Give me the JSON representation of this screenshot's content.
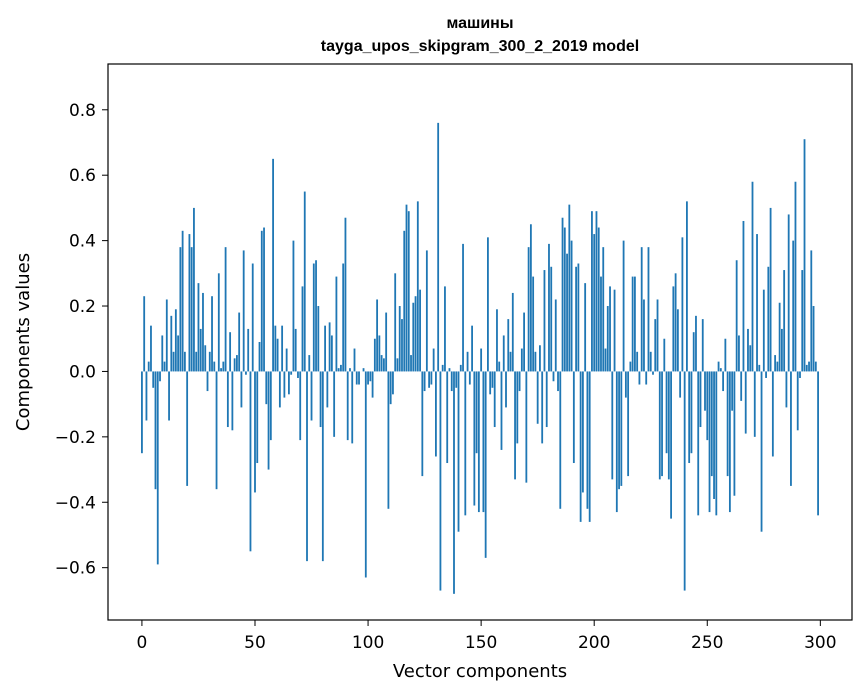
{
  "title_line1": "машины",
  "title_line2": "tayga_upos_skipgram_300_2_2019 model",
  "chart_data": {
    "type": "bar",
    "title": "машины tayga_upos_skipgram_300_2_2019 model",
    "xlabel": "Vector components",
    "ylabel": "Components values",
    "xlim": [
      -15,
      314
    ],
    "ylim": [
      -0.76,
      0.94
    ],
    "xticks": [
      0,
      50,
      100,
      150,
      200,
      250,
      300
    ],
    "xtick_labels": [
      "0",
      "50",
      "100",
      "150",
      "200",
      "250",
      "300"
    ],
    "yticks": [
      -0.6,
      -0.4,
      -0.2,
      0.0,
      0.2,
      0.4,
      0.6,
      0.8
    ],
    "ytick_labels": [
      "−0.6",
      "−0.4",
      "−0.2",
      "0.0",
      "0.2",
      "0.4",
      "0.6",
      "0.8"
    ],
    "grid": false,
    "bar_color": "#1f77b4",
    "x": [
      0,
      1,
      2,
      3,
      4,
      5,
      6,
      7,
      8,
      9,
      10,
      11,
      12,
      13,
      14,
      15,
      16,
      17,
      18,
      19,
      20,
      21,
      22,
      23,
      24,
      25,
      26,
      27,
      28,
      29,
      30,
      31,
      32,
      33,
      34,
      35,
      36,
      37,
      38,
      39,
      40,
      41,
      42,
      43,
      44,
      45,
      46,
      47,
      48,
      49,
      50,
      51,
      52,
      53,
      54,
      55,
      56,
      57,
      58,
      59,
      60,
      61,
      62,
      63,
      64,
      65,
      66,
      67,
      68,
      69,
      70,
      71,
      72,
      73,
      74,
      75,
      76,
      77,
      78,
      79,
      80,
      81,
      82,
      83,
      84,
      85,
      86,
      87,
      88,
      89,
      90,
      91,
      92,
      93,
      94,
      95,
      96,
      97,
      98,
      99,
      100,
      101,
      102,
      103,
      104,
      105,
      106,
      107,
      108,
      109,
      110,
      111,
      112,
      113,
      114,
      115,
      116,
      117,
      118,
      119,
      120,
      121,
      122,
      123,
      124,
      125,
      126,
      127,
      128,
      129,
      130,
      131,
      132,
      133,
      134,
      135,
      136,
      137,
      138,
      139,
      140,
      141,
      142,
      143,
      144,
      145,
      146,
      147,
      148,
      149,
      150,
      151,
      152,
      153,
      154,
      155,
      156,
      157,
      158,
      159,
      160,
      161,
      162,
      163,
      164,
      165,
      166,
      167,
      168,
      169,
      170,
      171,
      172,
      173,
      174,
      175,
      176,
      177,
      178,
      179,
      180,
      181,
      182,
      183,
      184,
      185,
      186,
      187,
      188,
      189,
      190,
      191,
      192,
      193,
      194,
      195,
      196,
      197,
      198,
      199,
      200,
      201,
      202,
      203,
      204,
      205,
      206,
      207,
      208,
      209,
      210,
      211,
      212,
      213,
      214,
      215,
      216,
      217,
      218,
      219,
      220,
      221,
      222,
      223,
      224,
      225,
      226,
      227,
      228,
      229,
      230,
      231,
      232,
      233,
      234,
      235,
      236,
      237,
      238,
      239,
      240,
      241,
      242,
      243,
      244,
      245,
      246,
      247,
      248,
      249,
      250,
      251,
      252,
      253,
      254,
      255,
      256,
      257,
      258,
      259,
      260,
      261,
      262,
      263,
      264,
      265,
      266,
      267,
      268,
      269,
      270,
      271,
      272,
      273,
      274,
      275,
      276,
      277,
      278,
      279,
      280,
      281,
      282,
      283,
      284,
      285,
      286,
      287,
      288,
      289,
      290,
      291,
      292,
      293,
      294,
      295,
      296,
      297,
      298,
      299
    ],
    "values": [
      -0.25,
      0.23,
      -0.15,
      0.03,
      0.14,
      -0.05,
      -0.36,
      -0.59,
      -0.03,
      0.11,
      0.03,
      0.22,
      -0.15,
      0.17,
      0.06,
      0.19,
      0.11,
      0.38,
      0.43,
      0.06,
      -0.35,
      0.42,
      0.38,
      0.5,
      0.06,
      0.27,
      0.13,
      0.24,
      0.08,
      -0.06,
      0.06,
      0.23,
      0.03,
      -0.36,
      0.3,
      0.01,
      0.03,
      0.38,
      -0.17,
      0.12,
      -0.18,
      0.04,
      0.05,
      0.18,
      -0.11,
      0.37,
      -0.01,
      0.13,
      -0.55,
      0.33,
      -0.37,
      -0.28,
      0.09,
      0.43,
      0.44,
      -0.1,
      -0.3,
      -0.21,
      0.65,
      0.14,
      0.1,
      -0.11,
      0.14,
      -0.08,
      0.07,
      -0.07,
      -0.01,
      0.4,
      0.13,
      -0.02,
      -0.21,
      0.26,
      0.55,
      -0.58,
      0.05,
      -0.15,
      0.33,
      0.34,
      0.2,
      -0.17,
      -0.58,
      0.14,
      -0.11,
      0.15,
      0.11,
      -0.2,
      0.29,
      0.01,
      0.02,
      0.33,
      0.47,
      -0.21,
      0.01,
      -0.22,
      0.07,
      -0.04,
      -0.04,
      0.0,
      0.01,
      -0.63,
      -0.04,
      -0.03,
      -0.08,
      0.1,
      0.22,
      0.11,
      0.05,
      0.04,
      0.18,
      -0.42,
      -0.1,
      -0.07,
      0.3,
      0.04,
      0.2,
      0.16,
      0.43,
      0.51,
      0.49,
      0.05,
      0.21,
      0.23,
      0.52,
      0.25,
      -0.32,
      -0.06,
      0.37,
      -0.05,
      -0.04,
      0.07,
      -0.26,
      0.76,
      -0.67,
      0.02,
      0.26,
      -0.28,
      0.01,
      -0.06,
      -0.68,
      -0.05,
      -0.49,
      0.02,
      0.39,
      -0.44,
      0.06,
      -0.04,
      0.14,
      -0.41,
      -0.25,
      -0.43,
      0.07,
      -0.43,
      -0.57,
      0.41,
      -0.07,
      -0.05,
      -0.17,
      0.19,
      0.03,
      -0.24,
      0.11,
      -0.11,
      0.16,
      0.06,
      0.24,
      -0.33,
      -0.22,
      -0.06,
      0.07,
      0.18,
      -0.34,
      0.38,
      0.45,
      0.29,
      0.06,
      -0.16,
      0.08,
      -0.22,
      0.31,
      -0.17,
      0.39,
      0.32,
      -0.03,
      0.22,
      -0.06,
      -0.42,
      0.47,
      0.44,
      0.36,
      0.51,
      0.4,
      -0.28,
      0.32,
      0.33,
      -0.46,
      -0.37,
      0.27,
      -0.42,
      -0.46,
      0.49,
      0.42,
      0.49,
      0.44,
      0.29,
      0.38,
      0.07,
      0.2,
      0.26,
      -0.33,
      0.25,
      -0.43,
      -0.36,
      -0.35,
      0.4,
      -0.08,
      -0.32,
      0.03,
      0.29,
      0.29,
      0.06,
      -0.04,
      0.38,
      0.22,
      -0.04,
      0.38,
      0.06,
      -0.01,
      0.16,
      0.22,
      -0.33,
      -0.32,
      0.1,
      -0.25,
      -0.33,
      -0.45,
      0.26,
      0.3,
      0.19,
      -0.08,
      0.41,
      -0.67,
      0.52,
      -0.28,
      -0.25,
      0.12,
      0.17,
      -0.44,
      -0.17,
      0.16,
      -0.12,
      -0.21,
      -0.43,
      -0.32,
      -0.39,
      -0.44,
      0.03,
      0.01,
      -0.06,
      0.1,
      -0.32,
      -0.43,
      -0.12,
      -0.38,
      0.34,
      0.11,
      -0.09,
      0.46,
      -0.19,
      0.13,
      0.08,
      0.58,
      -0.2,
      0.42,
      0.02,
      -0.49,
      0.25,
      -0.02,
      0.32,
      0.5,
      -0.26,
      0.05,
      0.03,
      0.21,
      0.13,
      0.31,
      -0.11,
      0.48,
      -0.35,
      0.4,
      0.58,
      -0.18,
      -0.02,
      0.31,
      0.71,
      0.02,
      0.03,
      0.37,
      0.2,
      0.03,
      -0.44
    ]
  }
}
